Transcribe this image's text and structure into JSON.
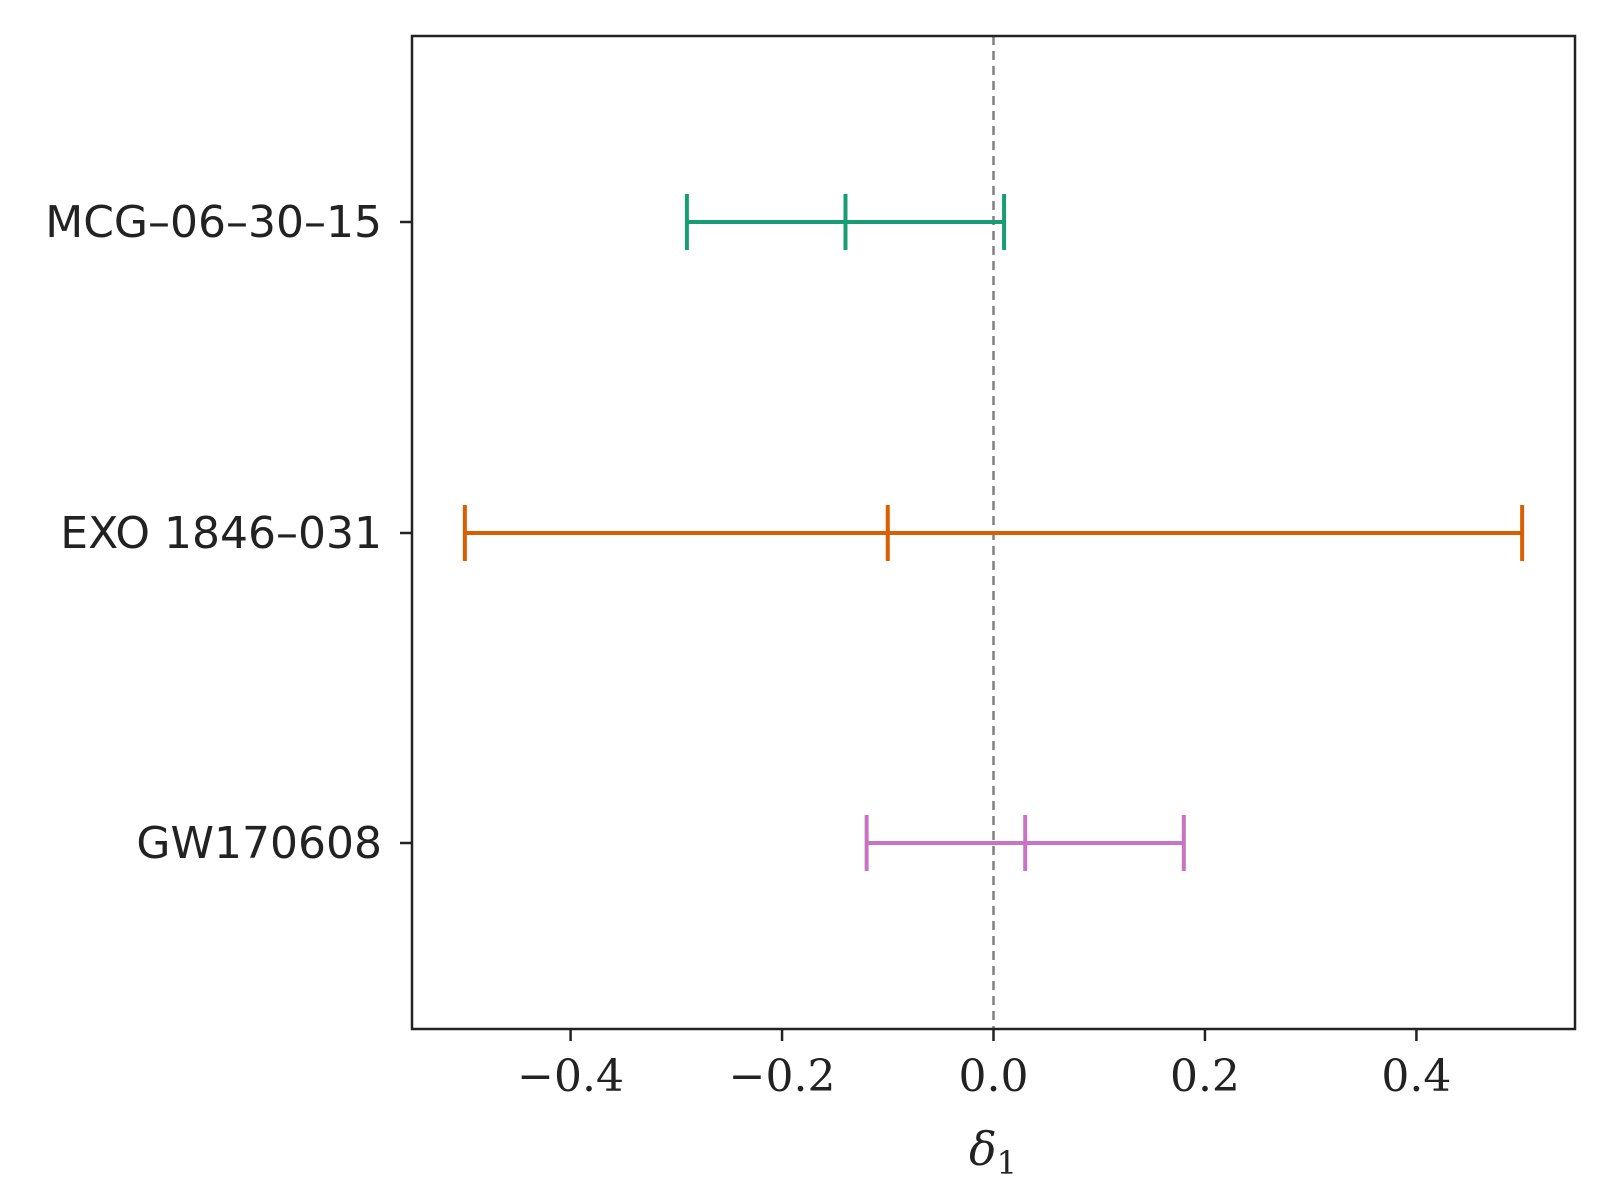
{
  "chart_data": {
    "type": "errorbar",
    "xlabel": "δ",
    "xlabel_subscript": "1",
    "xlim": [
      -0.55,
      0.55
    ],
    "xticks": [
      -0.4,
      -0.2,
      0.0,
      0.2,
      0.4
    ],
    "xtick_labels": [
      "−0.4",
      "−0.2",
      "0.0",
      "0.2",
      "0.4"
    ],
    "reference_line": {
      "x": 0.0,
      "style": "dashed",
      "color": "#808080"
    },
    "grid": false,
    "legend": "none",
    "categories": [
      "MCG–06–30–15",
      "EXO 1846–031",
      "GW170608"
    ],
    "points": [
      {
        "label": "MCG–06–30–15",
        "value": -0.14,
        "lower": -0.29,
        "upper": 0.01,
        "color": "#179c73"
      },
      {
        "label": "EXO 1846–031",
        "value": -0.1,
        "lower": -0.5,
        "upper": 0.5,
        "color": "#d95f02"
      },
      {
        "label": "GW170608",
        "value": 0.03,
        "lower": -0.12,
        "upper": 0.18,
        "color": "#c774c2"
      }
    ]
  }
}
